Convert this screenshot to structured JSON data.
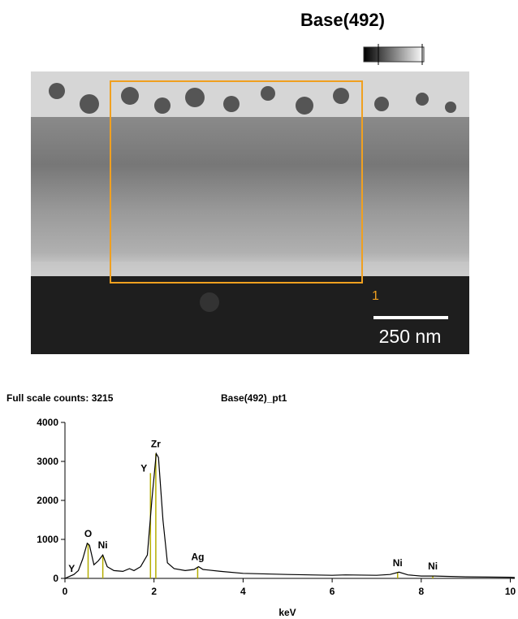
{
  "title": "Base(492)",
  "image": {
    "region_label": "1",
    "scale_bar": "250 nm"
  },
  "chart_data": {
    "type": "line",
    "title": "Full scale counts: 3215",
    "subtitle": "Base(492)_pt1",
    "x_label": "keV",
    "color": "#000000",
    "marker_color": "#b5ae00",
    "x": [
      0,
      0.1,
      0.2,
      0.3,
      0.4,
      0.5,
      0.55,
      0.65,
      0.75,
      0.85,
      0.95,
      1.1,
      1.3,
      1.45,
      1.55,
      1.7,
      1.85,
      1.95,
      2.05,
      2.1,
      2.2,
      2.3,
      2.45,
      2.7,
      2.9,
      3.0,
      3.1,
      3.5,
      4,
      5,
      6,
      6.3,
      7,
      7.3,
      7.5,
      7.7,
      8,
      8.3,
      9,
      10,
      10.1
    ],
    "values": [
      0,
      50,
      100,
      200,
      500,
      900,
      850,
      350,
      450,
      600,
      300,
      200,
      180,
      250,
      200,
      300,
      600,
      2000,
      3200,
      3100,
      1500,
      400,
      250,
      200,
      230,
      300,
      230,
      180,
      130,
      100,
      80,
      90,
      80,
      100,
      160,
      90,
      60,
      60,
      40,
      30,
      20
    ],
    "peaks": [
      {
        "label": "Y",
        "energy": 0.15,
        "height": 0
      },
      {
        "label": "O",
        "energy": 0.52,
        "height": 900
      },
      {
        "label": "Ni",
        "energy": 0.85,
        "height": 600
      },
      {
        "label": "Y",
        "energy": 1.92,
        "height": 2700
      },
      {
        "label": "Zr",
        "energy": 2.04,
        "height": 3200
      },
      {
        "label": "Ag",
        "energy": 2.98,
        "height": 300
      },
      {
        "label": "Ni",
        "energy": 7.47,
        "height": 150
      },
      {
        "label": "Ni",
        "energy": 8.26,
        "height": 60
      }
    ],
    "xlim": [
      0,
      10.1
    ],
    "ylim": [
      0,
      4000
    ],
    "xticks": [
      0,
      2,
      4,
      6,
      8,
      10
    ],
    "yticks": [
      0,
      1000,
      2000,
      3000,
      4000
    ]
  }
}
